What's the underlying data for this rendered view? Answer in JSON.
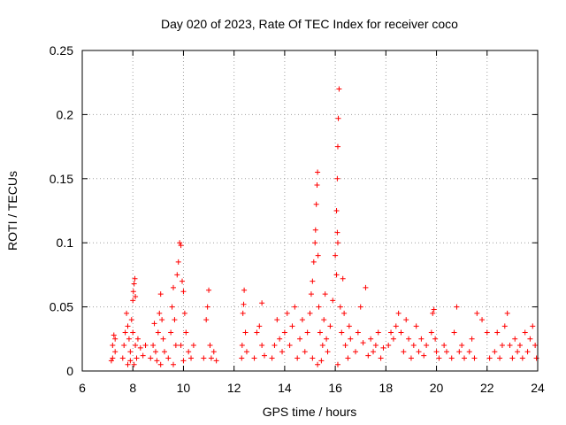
{
  "chart_data": {
    "type": "scatter",
    "title": "Day 020 of 2023, Rate Of TEC Index for receiver coco",
    "xlabel": "GPS time / hours",
    "ylabel": "ROTI / TECUs",
    "xlim": [
      6,
      24
    ],
    "ylim": [
      0,
      0.25
    ],
    "x_ticks": [
      "6",
      "8",
      "10",
      "12",
      "14",
      "16",
      "18",
      "20",
      "22",
      "24"
    ],
    "y_ticks": [
      "0",
      "0.05",
      "0.1",
      "0.15",
      "0.2",
      "0.25"
    ],
    "grid": true,
    "marker": "plus",
    "color": "#ff0000",
    "series": [
      {
        "points": [
          [
            7.15,
            0.008
          ],
          [
            7.2,
            0.02
          ],
          [
            7.25,
            0.028
          ],
          [
            7.3,
            0.015
          ],
          [
            7.2,
            0.01
          ],
          [
            7.3,
            0.025
          ],
          [
            7.6,
            0.01
          ],
          [
            7.65,
            0.02
          ],
          [
            7.7,
            0.03
          ],
          [
            7.75,
            0.045
          ],
          [
            7.8,
            0.035
          ],
          [
            7.85,
            0.025
          ],
          [
            7.9,
            0.015
          ],
          [
            7.8,
            0.005
          ],
          [
            7.95,
            0.04
          ],
          [
            8.0,
            0.055
          ],
          [
            8.02,
            0.062
          ],
          [
            8.05,
            0.068
          ],
          [
            8.08,
            0.072
          ],
          [
            8.1,
            0.058
          ],
          [
            8.0,
            0.03
          ],
          [
            8.1,
            0.02
          ],
          [
            8.15,
            0.01
          ],
          [
            8.2,
            0.025
          ],
          [
            8.3,
            0.018
          ],
          [
            8.4,
            0.012
          ],
          [
            8.5,
            0.02
          ],
          [
            7.9,
            0.008
          ],
          [
            8.05,
            0.005
          ],
          [
            8.7,
            0.01
          ],
          [
            8.8,
            0.02
          ],
          [
            8.85,
            0.037
          ],
          [
            8.9,
            0.015
          ],
          [
            8.95,
            0.008
          ],
          [
            9.0,
            0.03
          ],
          [
            9.05,
            0.045
          ],
          [
            9.1,
            0.06
          ],
          [
            9.15,
            0.04
          ],
          [
            9.2,
            0.025
          ],
          [
            9.25,
            0.015
          ],
          [
            9.1,
            0.005
          ],
          [
            9.4,
            0.01
          ],
          [
            9.5,
            0.03
          ],
          [
            9.55,
            0.05
          ],
          [
            9.6,
            0.065
          ],
          [
            9.65,
            0.04
          ],
          [
            9.7,
            0.02
          ],
          [
            9.75,
            0.075
          ],
          [
            9.8,
            0.085
          ],
          [
            9.85,
            0.1
          ],
          [
            9.9,
            0.098
          ],
          [
            9.95,
            0.07
          ],
          [
            10.0,
            0.062
          ],
          [
            10.05,
            0.045
          ],
          [
            10.1,
            0.03
          ],
          [
            9.9,
            0.02
          ],
          [
            10.2,
            0.015
          ],
          [
            10.3,
            0.01
          ],
          [
            9.6,
            0.005
          ],
          [
            10.0,
            0.008
          ],
          [
            10.4,
            0.02
          ],
          [
            10.8,
            0.01
          ],
          [
            10.9,
            0.04
          ],
          [
            10.95,
            0.05
          ],
          [
            11.0,
            0.063
          ],
          [
            11.05,
            0.02
          ],
          [
            11.1,
            0.01
          ],
          [
            11.2,
            0.015
          ],
          [
            11.3,
            0.008
          ],
          [
            12.3,
            0.01
          ],
          [
            12.32,
            0.02
          ],
          [
            12.35,
            0.045
          ],
          [
            12.38,
            0.052
          ],
          [
            12.4,
            0.063
          ],
          [
            12.45,
            0.03
          ],
          [
            12.5,
            0.015
          ],
          [
            12.8,
            0.01
          ],
          [
            12.9,
            0.03
          ],
          [
            13.0,
            0.035
          ],
          [
            13.1,
            0.02
          ],
          [
            13.2,
            0.012
          ],
          [
            13.1,
            0.053
          ],
          [
            13.5,
            0.01
          ],
          [
            13.6,
            0.02
          ],
          [
            13.7,
            0.04
          ],
          [
            13.8,
            0.025
          ],
          [
            13.9,
            0.015
          ],
          [
            14.0,
            0.03
          ],
          [
            14.1,
            0.045
          ],
          [
            14.2,
            0.02
          ],
          [
            14.3,
            0.035
          ],
          [
            14.4,
            0.05
          ],
          [
            14.5,
            0.01
          ],
          [
            14.6,
            0.025
          ],
          [
            14.7,
            0.04
          ],
          [
            14.8,
            0.015
          ],
          [
            14.9,
            0.03
          ],
          [
            15.0,
            0.045
          ],
          [
            15.05,
            0.06
          ],
          [
            15.1,
            0.07
          ],
          [
            15.15,
            0.085
          ],
          [
            15.2,
            0.1
          ],
          [
            15.22,
            0.11
          ],
          [
            15.25,
            0.13
          ],
          [
            15.28,
            0.145
          ],
          [
            15.3,
            0.155
          ],
          [
            15.32,
            0.09
          ],
          [
            15.35,
            0.05
          ],
          [
            15.4,
            0.03
          ],
          [
            15.5,
            0.02
          ],
          [
            15.55,
            0.04
          ],
          [
            15.6,
            0.06
          ],
          [
            15.65,
            0.025
          ],
          [
            15.7,
            0.015
          ],
          [
            15.8,
            0.035
          ],
          [
            15.9,
            0.055
          ],
          [
            15.1,
            0.01
          ],
          [
            15.3,
            0.005
          ],
          [
            15.45,
            0.008
          ],
          [
            16.0,
            0.09
          ],
          [
            16.05,
            0.125
          ],
          [
            16.08,
            0.15
          ],
          [
            16.1,
            0.175
          ],
          [
            16.12,
            0.197
          ],
          [
            16.15,
            0.22
          ],
          [
            16.08,
            0.108
          ],
          [
            16.1,
            0.1
          ],
          [
            16.05,
            0.075
          ],
          [
            16.2,
            0.05
          ],
          [
            16.25,
            0.03
          ],
          [
            16.3,
            0.072
          ],
          [
            16.35,
            0.045
          ],
          [
            16.4,
            0.02
          ],
          [
            16.5,
            0.01
          ],
          [
            16.55,
            0.035
          ],
          [
            16.6,
            0.025
          ],
          [
            16.1,
            0.005
          ],
          [
            16.8,
            0.015
          ],
          [
            16.9,
            0.03
          ],
          [
            17.0,
            0.05
          ],
          [
            17.1,
            0.022
          ],
          [
            17.2,
            0.065
          ],
          [
            17.3,
            0.012
          ],
          [
            17.4,
            0.025
          ],
          [
            17.5,
            0.015
          ],
          [
            17.6,
            0.02
          ],
          [
            17.7,
            0.03
          ],
          [
            17.8,
            0.01
          ],
          [
            17.9,
            0.018
          ],
          [
            18.1,
            0.02
          ],
          [
            18.2,
            0.03
          ],
          [
            18.3,
            0.025
          ],
          [
            18.4,
            0.035
          ],
          [
            18.5,
            0.045
          ],
          [
            18.6,
            0.03
          ],
          [
            18.7,
            0.015
          ],
          [
            18.8,
            0.04
          ],
          [
            18.9,
            0.025
          ],
          [
            19.0,
            0.01
          ],
          [
            19.1,
            0.02
          ],
          [
            19.2,
            0.035
          ],
          [
            19.3,
            0.015
          ],
          [
            19.4,
            0.025
          ],
          [
            19.5,
            0.012
          ],
          [
            19.6,
            0.02
          ],
          [
            19.8,
            0.03
          ],
          [
            19.85,
            0.045
          ],
          [
            19.9,
            0.048
          ],
          [
            19.95,
            0.025
          ],
          [
            20.0,
            0.015
          ],
          [
            20.1,
            0.01
          ],
          [
            20.3,
            0.02
          ],
          [
            20.4,
            0.015
          ],
          [
            20.6,
            0.01
          ],
          [
            20.7,
            0.03
          ],
          [
            20.8,
            0.05
          ],
          [
            20.9,
            0.015
          ],
          [
            21.0,
            0.02
          ],
          [
            21.1,
            0.01
          ],
          [
            21.3,
            0.015
          ],
          [
            21.4,
            0.025
          ],
          [
            21.5,
            0.01
          ],
          [
            21.6,
            0.045
          ],
          [
            21.8,
            0.04
          ],
          [
            22.0,
            0.03
          ],
          [
            22.1,
            0.01
          ],
          [
            22.3,
            0.015
          ],
          [
            22.4,
            0.03
          ],
          [
            22.5,
            0.01
          ],
          [
            22.6,
            0.02
          ],
          [
            22.7,
            0.035
          ],
          [
            22.8,
            0.045
          ],
          [
            22.9,
            0.02
          ],
          [
            23.0,
            0.01
          ],
          [
            23.1,
            0.025
          ],
          [
            23.2,
            0.015
          ],
          [
            23.3,
            0.02
          ],
          [
            23.4,
            0.01
          ],
          [
            23.5,
            0.03
          ],
          [
            23.6,
            0.015
          ],
          [
            23.7,
            0.025
          ],
          [
            23.8,
            0.035
          ],
          [
            23.9,
            0.02
          ],
          [
            23.95,
            0.01
          ]
        ]
      }
    ]
  }
}
